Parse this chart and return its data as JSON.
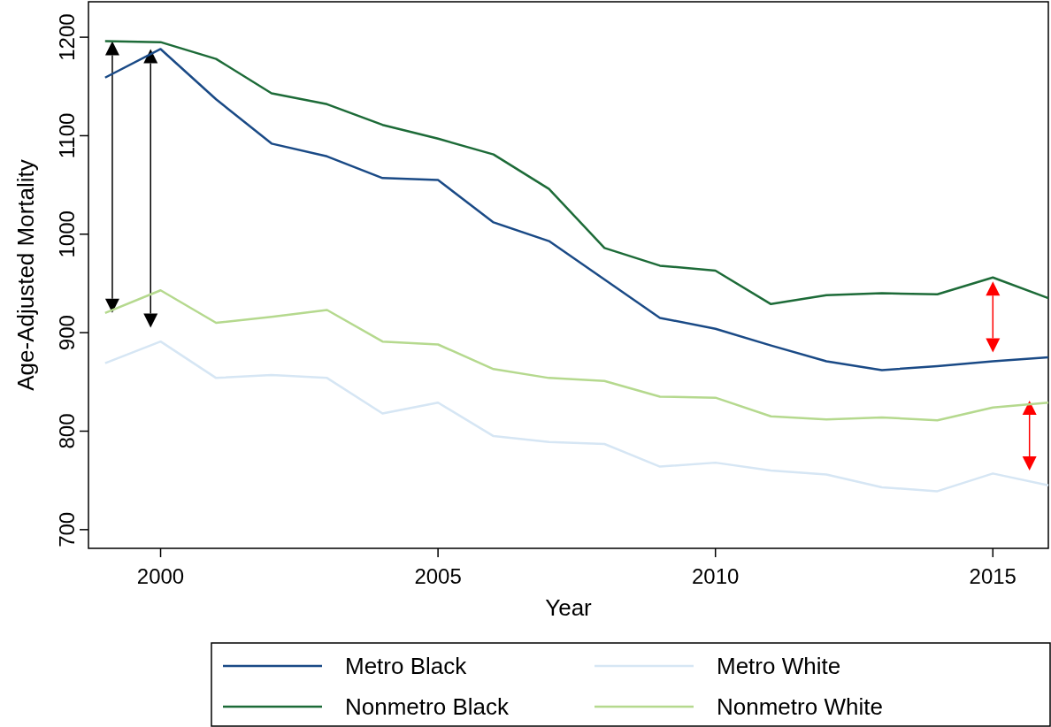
{
  "chart_data": {
    "type": "line",
    "xlabel": "Year",
    "ylabel": "Age-Adjusted Mortality",
    "x": [
      1999,
      2000,
      2001,
      2002,
      2003,
      2004,
      2005,
      2006,
      2007,
      2008,
      2009,
      2010,
      2011,
      2012,
      2013,
      2014,
      2015,
      2016
    ],
    "xlim": [
      1998.7,
      2016
    ],
    "xticks": [
      2000,
      2005,
      2010,
      2015
    ],
    "ylim": [
      681,
      1236
    ],
    "yticks": [
      700,
      800,
      900,
      1000,
      1100,
      1200
    ],
    "grid": false,
    "legend": "bottom",
    "marker": "none",
    "line_style": "solid",
    "series": [
      {
        "name": "Metro Black",
        "color": "#1a4a86",
        "values": [
          1159,
          1188,
          1137,
          1092,
          1079,
          1057,
          1055,
          1012,
          993,
          954,
          915,
          904,
          887,
          871,
          862,
          866,
          871,
          875
        ]
      },
      {
        "name": "Metro White",
        "color": "#d6e6f4",
        "values": [
          869,
          891,
          854,
          857,
          854,
          818,
          829,
          795,
          789,
          787,
          764,
          768,
          760,
          756,
          743,
          739,
          757,
          745
        ]
      },
      {
        "name": "Nonmetro Black",
        "color": "#1d6b38",
        "values": [
          1196,
          1195,
          1178,
          1143,
          1132,
          1111,
          1097,
          1081,
          1046,
          986,
          968,
          963,
          929,
          938,
          940,
          939,
          956,
          935
        ]
      },
      {
        "name": "Nonmetro White",
        "color": "#b5d98e",
        "values": [
          920,
          943,
          910,
          916,
          923,
          891,
          888,
          863,
          854,
          851,
          835,
          834,
          815,
          812,
          814,
          811,
          824,
          829
        ]
      }
    ]
  }
}
